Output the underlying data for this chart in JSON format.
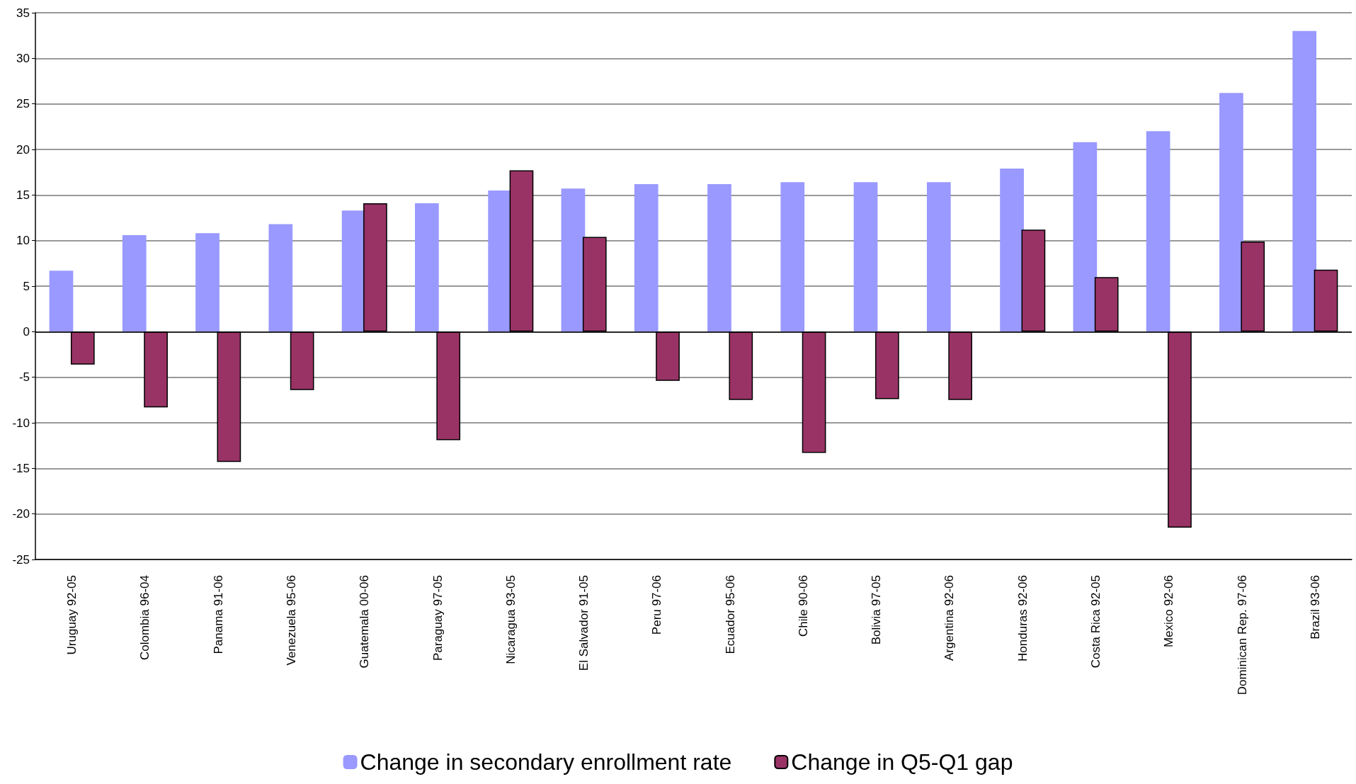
{
  "chart_data": {
    "type": "bar",
    "categories": [
      "Uruguay 92-05",
      "Colombia 96-04",
      "Panama 91-06",
      "Venezuela 95-06",
      "Guatemala 00-06",
      "Paraguay 97-05",
      "Nicaragua 93-05",
      "El Salvador 91-05",
      "Peru 97-06",
      "Ecuador 95-06",
      "Chile 90-06",
      "Bolivia 97-05",
      "Argentina 92-06",
      "Honduras 92-06",
      "Costa Rica 92-05",
      "Mexico 92-06",
      "Dominican Rep. 97-06",
      "Brazil 93-06"
    ],
    "series": [
      {
        "name": "Change in secondary enrollment rate",
        "color": "#9999ff",
        "values": [
          6.7,
          10.6,
          10.8,
          11.8,
          13.3,
          14.1,
          15.5,
          15.7,
          16.2,
          16.2,
          16.4,
          16.4,
          16.4,
          17.9,
          20.8,
          22.0,
          26.2,
          33.0
        ]
      },
      {
        "name": "Change in Q5-Q1 gap",
        "color": "#993366",
        "values": [
          -3.6,
          -8.3,
          -14.3,
          -6.4,
          14.1,
          -11.9,
          17.7,
          10.4,
          -5.4,
          -7.5,
          -13.3,
          -7.4,
          -7.5,
          11.2,
          6.0,
          -21.5,
          9.9,
          6.8
        ]
      }
    ],
    "ylim": [
      -25,
      35
    ],
    "yticks": [
      -25,
      -20,
      -15,
      -10,
      -5,
      0,
      5,
      10,
      15,
      20,
      25,
      30,
      35
    ],
    "grid": "y",
    "legend": "bottom"
  }
}
